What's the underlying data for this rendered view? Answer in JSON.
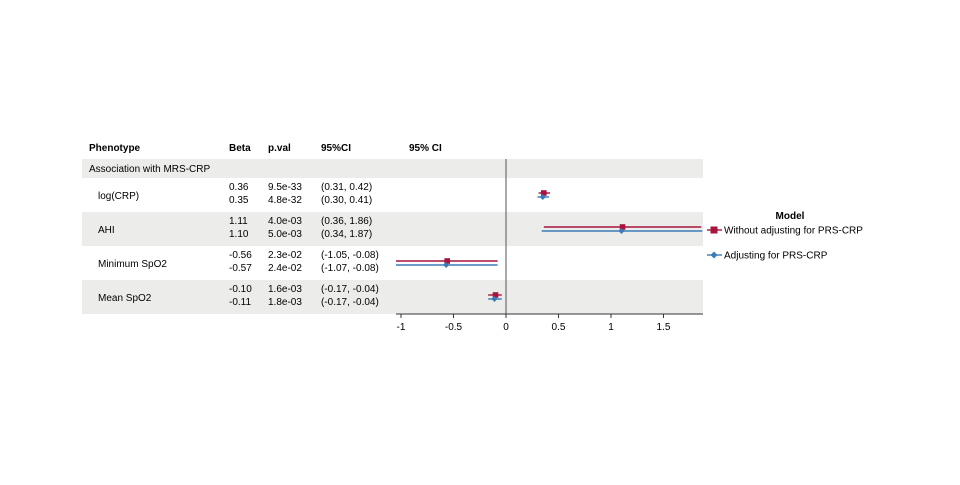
{
  "table": {
    "headers": {
      "phenotype": "Phenotype",
      "beta": "Beta",
      "pval": "p.val",
      "ci": "95%CI",
      "plot": "95% CI"
    },
    "section_label": "Association with MRS-CRP"
  },
  "legend": {
    "title": "Model",
    "entries": [
      "Without adjusting for PRS-CRP",
      "Adjusting for PRS-CRP"
    ]
  },
  "colors": {
    "without": "#A8143C",
    "adjusting": "#3B7BB8",
    "band": "#ECEDEB",
    "zero_line": "#555555"
  },
  "chart_data": {
    "type": "scatter",
    "subtype": "forest-plot",
    "xlabel": "",
    "xlim": [
      -1.1,
      1.85
    ],
    "xticks": [
      -1,
      -0.5,
      0,
      0.5,
      1,
      1.5
    ],
    "xtick_labels": [
      "-1",
      "-0.5",
      "0",
      "0.5",
      "1",
      "1.5"
    ],
    "reference_line": 0,
    "series": [
      {
        "name": "Without adjusting for PRS-CRP",
        "marker": "square"
      },
      {
        "name": "Adjusting for PRS-CRP",
        "marker": "diamond"
      }
    ],
    "rows": [
      {
        "phenotype": "log(CRP)",
        "estimates": [
          {
            "beta": "0.36",
            "pval": "9.5e-33",
            "ci": "(0.31, 0.42)",
            "value": 0.36,
            "lower": 0.31,
            "upper": 0.42
          },
          {
            "beta": "0.35",
            "pval": "4.8e-32",
            "ci": "(0.30, 0.41)",
            "value": 0.35,
            "lower": 0.3,
            "upper": 0.41
          }
        ]
      },
      {
        "phenotype": "AHI",
        "estimates": [
          {
            "beta": "1.11",
            "pval": "4.0e-03",
            "ci": "(0.36, 1.86)",
            "value": 1.11,
            "lower": 0.36,
            "upper": 1.86
          },
          {
            "beta": "1.10",
            "pval": "5.0e-03",
            "ci": "(0.34, 1.87)",
            "value": 1.1,
            "lower": 0.34,
            "upper": 1.87
          }
        ]
      },
      {
        "phenotype": "Minimum SpO2",
        "estimates": [
          {
            "beta": "-0.56",
            "pval": "2.3e-02",
            "ci": "(-1.05, -0.08)",
            "value": -0.56,
            "lower": -1.05,
            "upper": -0.08
          },
          {
            "beta": "-0.57",
            "pval": "2.4e-02",
            "ci": "(-1.07, -0.08)",
            "value": -0.57,
            "lower": -1.07,
            "upper": -0.08
          }
        ]
      },
      {
        "phenotype": "Mean SpO2",
        "estimates": [
          {
            "beta": "-0.10",
            "pval": "1.6e-03",
            "ci": "(-0.17, -0.04)",
            "value": -0.1,
            "lower": -0.17,
            "upper": -0.04
          },
          {
            "beta": "-0.11",
            "pval": "1.8e-03",
            "ci": "(-0.17, -0.04)",
            "value": -0.11,
            "lower": -0.17,
            "upper": -0.04
          }
        ]
      }
    ]
  }
}
